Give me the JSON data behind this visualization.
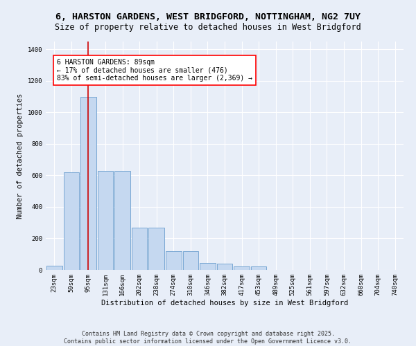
{
  "title_line1": "6, HARSTON GARDENS, WEST BRIDGFORD, NOTTINGHAM, NG2 7UY",
  "title_line2": "Size of property relative to detached houses in West Bridgford",
  "xlabel": "Distribution of detached houses by size in West Bridgford",
  "ylabel": "Number of detached properties",
  "categories": [
    "23sqm",
    "59sqm",
    "95sqm",
    "131sqm",
    "166sqm",
    "202sqm",
    "238sqm",
    "274sqm",
    "310sqm",
    "346sqm",
    "382sqm",
    "417sqm",
    "453sqm",
    "489sqm",
    "525sqm",
    "561sqm",
    "597sqm",
    "632sqm",
    "668sqm",
    "704sqm",
    "740sqm"
  ],
  "bar_heights": [
    25,
    620,
    1100,
    630,
    630,
    270,
    270,
    120,
    120,
    45,
    40,
    20,
    20,
    0,
    0,
    0,
    0,
    0,
    0,
    0,
    0
  ],
  "bar_color": "#c5d8f0",
  "bar_edge_color": "#6b9fcf",
  "background_color": "#e8eef8",
  "grid_color": "#ffffff",
  "vline_x": 2,
  "vline_color": "#cc0000",
  "annotation_text": "6 HARSTON GARDENS: 89sqm\n← 17% of detached houses are smaller (476)\n83% of semi-detached houses are larger (2,369) →",
  "ylim": [
    0,
    1450
  ],
  "yticks": [
    0,
    200,
    400,
    600,
    800,
    1000,
    1200,
    1400
  ],
  "footer_line1": "Contains HM Land Registry data © Crown copyright and database right 2025.",
  "footer_line2": "Contains public sector information licensed under the Open Government Licence v3.0.",
  "title_fontsize": 9.5,
  "subtitle_fontsize": 8.5,
  "axis_label_fontsize": 7.5,
  "tick_fontsize": 6.5,
  "annotation_fontsize": 7,
  "footer_fontsize": 6
}
